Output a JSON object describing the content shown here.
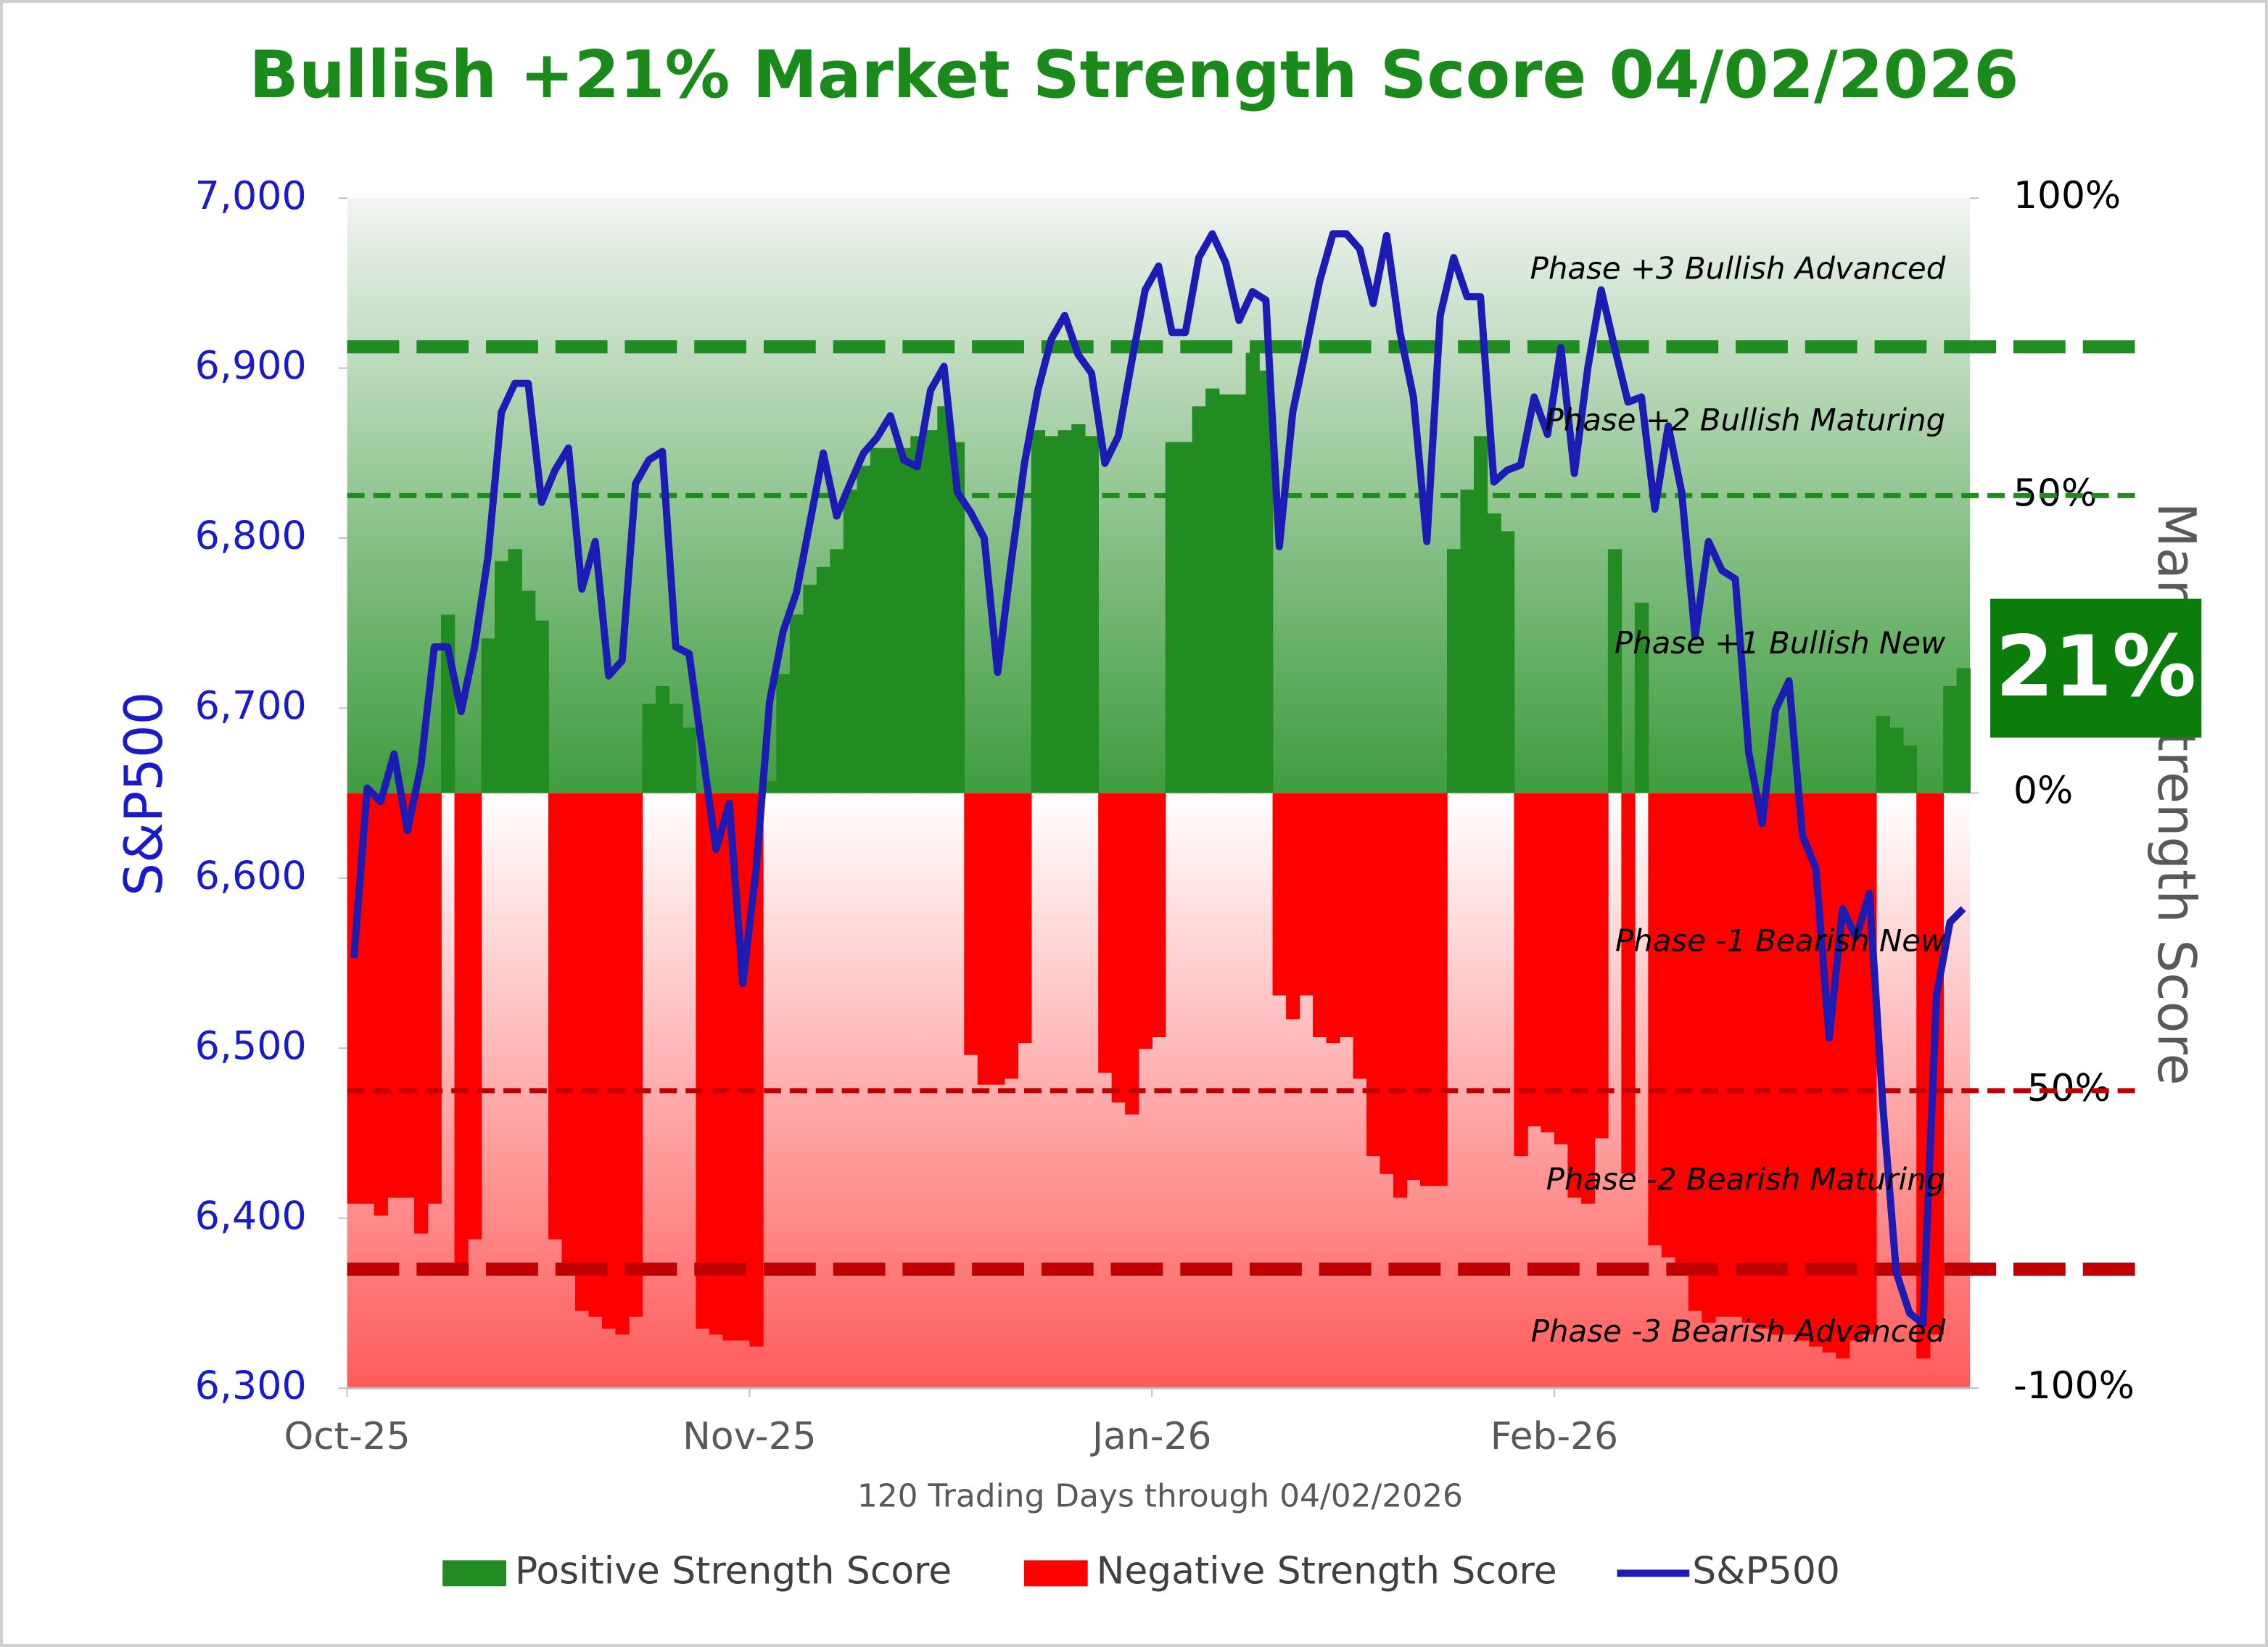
{
  "chart_data": {
    "type": "combo",
    "title": "Bullish +21% Market Strength Score 04/02/2026",
    "x_label": "120 Trading Days through 04/02/2026",
    "y_label": "S&P500",
    "y2_label": "Market Strength Score",
    "categories": [
      "Oct-25",
      null,
      null,
      null,
      null,
      null,
      null,
      null,
      null,
      null,
      null,
      null,
      null,
      null,
      null,
      null,
      null,
      null,
      null,
      null,
      null,
      null,
      null,
      null,
      null,
      null,
      null,
      null,
      null,
      null,
      "Nov-25",
      null,
      null,
      null,
      null,
      null,
      null,
      null,
      null,
      null,
      null,
      null,
      null,
      null,
      null,
      null,
      null,
      null,
      null,
      null,
      null,
      null,
      null,
      null,
      null,
      null,
      null,
      null,
      null,
      null,
      "Jan-26",
      null,
      null,
      null,
      null,
      null,
      null,
      null,
      null,
      null,
      null,
      null,
      null,
      null,
      null,
      null,
      null,
      null,
      null,
      null,
      null,
      null,
      null,
      null,
      null,
      null,
      null,
      null,
      null,
      null,
      "Feb-26",
      null,
      null,
      null,
      null,
      null,
      null,
      null,
      null,
      null,
      null,
      null,
      null,
      null,
      null,
      null,
      null,
      null,
      null,
      null,
      null,
      null,
      null,
      null,
      null,
      null,
      null,
      null,
      null,
      null,
      null
    ],
    "ylim": [
      6300,
      7000
    ],
    "yticks": [
      {
        "value": 6300,
        "label": "6,300"
      },
      {
        "value": 6400,
        "label": "6,400"
      },
      {
        "value": 6500,
        "label": "6,500"
      },
      {
        "value": 6600,
        "label": "6,600"
      },
      {
        "value": 6700,
        "label": "6,700"
      },
      {
        "value": 6800,
        "label": "6,800"
      },
      {
        "value": 6900,
        "label": "6,900"
      },
      {
        "value": 7000,
        "label": "7,000"
      }
    ],
    "y2lim": [
      -100,
      100
    ],
    "y2ticks": [
      {
        "value": -100,
        "label": "-100%"
      },
      {
        "value": -50,
        "label": "-50%"
      },
      {
        "value": 0,
        "label": "0%"
      },
      {
        "value": 50,
        "label": "50%"
      },
      {
        "value": 100,
        "label": "100%"
      }
    ],
    "legend": "bottom",
    "series": [
      {
        "name": "Positive Strength Score",
        "type": "bar",
        "axis": "y2",
        "color": "#228b22",
        "values": [
          null,
          null,
          null,
          null,
          null,
          null,
          null,
          30,
          null,
          null,
          26,
          39,
          41,
          34,
          29,
          null,
          null,
          null,
          null,
          null,
          null,
          null,
          15,
          18,
          15,
          11,
          null,
          null,
          null,
          null,
          null,
          2,
          20,
          30,
          35,
          38,
          41,
          51,
          55,
          58,
          58,
          58,
          60,
          61,
          65,
          59,
          null,
          null,
          null,
          null,
          null,
          61,
          60,
          61,
          62,
          60,
          null,
          null,
          null,
          null,
          null,
          59,
          59,
          65,
          68,
          67,
          67,
          74,
          71,
          null,
          null,
          null,
          null,
          null,
          null,
          null,
          null,
          null,
          null,
          null,
          null,
          null,
          41,
          51,
          60,
          47,
          44,
          null,
          null,
          null,
          null,
          null,
          null,
          null,
          41,
          null,
          32,
          null,
          null,
          null,
          null,
          null,
          null,
          null,
          null,
          null,
          null,
          null,
          null,
          null,
          null,
          null,
          null,
          null,
          13,
          11,
          8,
          null,
          null,
          18,
          21
        ]
      },
      {
        "name": "Negative Strength Score",
        "type": "bar",
        "axis": "y2",
        "color": "#ff0000",
        "values": [
          -69,
          -69,
          -71,
          -68,
          -68,
          -74,
          -69,
          null,
          -79,
          -75,
          null,
          null,
          null,
          null,
          null,
          -75,
          -80,
          -87,
          -88,
          -90,
          -91,
          -88,
          null,
          null,
          null,
          null,
          -90,
          -91,
          -92,
          -92,
          -93,
          null,
          null,
          null,
          null,
          null,
          null,
          null,
          null,
          null,
          null,
          null,
          null,
          null,
          null,
          null,
          -44,
          -49,
          -49,
          -48,
          -42,
          null,
          null,
          null,
          null,
          null,
          -47,
          -52,
          -54,
          -43,
          -41,
          null,
          null,
          null,
          null,
          null,
          null,
          null,
          null,
          -34,
          -38,
          -34,
          -41,
          -42,
          -41,
          -48,
          -61,
          -64,
          -68,
          -65,
          -66,
          -66,
          null,
          null,
          null,
          null,
          null,
          -61,
          -56,
          -57,
          -59,
          -68,
          -69,
          -58,
          null,
          -64,
          null,
          -76,
          -78,
          -80,
          -87,
          -89,
          -88,
          -88,
          -89,
          -90,
          -91,
          -91,
          -92,
          -93,
          -94,
          -95,
          -92,
          -91,
          null,
          null,
          null,
          -95,
          -91,
          null,
          null
        ]
      },
      {
        "name": "S&P500",
        "type": "line",
        "axis": "y",
        "color": "#1c1cb4",
        "values": [
          6553,
          6653,
          6645,
          6673,
          6628,
          6666,
          6736,
          6736,
          6698,
          6736,
          6789,
          6874,
          6891,
          6891,
          6821,
          6840,
          6853,
          6770,
          6798,
          6719,
          6728,
          6832,
          6846,
          6851,
          6736,
          6732,
          6674,
          6617,
          6644,
          6538,
          6606,
          6704,
          6745,
          6768,
          6809,
          6850,
          6813,
          6832,
          6850,
          6859,
          6872,
          6846,
          6842,
          6887,
          6901,
          6827,
          6815,
          6800,
          6721,
          6785,
          6844,
          6887,
          6917,
          6931,
          6908,
          6897,
          6844,
          6860,
          6904,
          6946,
          6960,
          6921,
          6921,
          6965,
          6979,
          6962,
          6928,
          6945,
          6940,
          6795,
          6874,
          6912,
          6951,
          6979,
          6979,
          6970,
          6938,
          6978,
          6921,
          6883,
          6798,
          6931,
          6965,
          6942,
          6942,
          6833,
          6840,
          6843,
          6883,
          6861,
          6912,
          6838,
          6900,
          6946,
          6912,
          6880,
          6883,
          6817,
          6866,
          6827,
          6742,
          6798,
          6781,
          6776,
          6674,
          6632,
          6699,
          6716,
          6625,
          6606,
          6506,
          6582,
          6565,
          6591,
          6466,
          6368,
          6344,
          6338,
          6531,
          6574,
          6582
        ]
      }
    ],
    "reference_lines": [
      {
        "value": 75,
        "color": "#1e8c1e",
        "weight": "thick"
      },
      {
        "value": 50,
        "color": "#1e8c1e",
        "weight": "thin"
      },
      {
        "value": -50,
        "color": "#c00000",
        "weight": "thin"
      },
      {
        "value": -80,
        "color": "#c00000",
        "weight": "thick"
      }
    ],
    "phases": [
      "Phase +3 Bullish Advanced",
      "Phase +2 Bullish Maturing",
      "Phase +1 Bullish New",
      "Phase -1 Bearish New",
      "Phase -2 Bearish Maturing",
      "Phase -3 Bearish Advanced"
    ],
    "badge": {
      "value": 21,
      "label": "21%",
      "color": "#0a7d0a"
    }
  }
}
